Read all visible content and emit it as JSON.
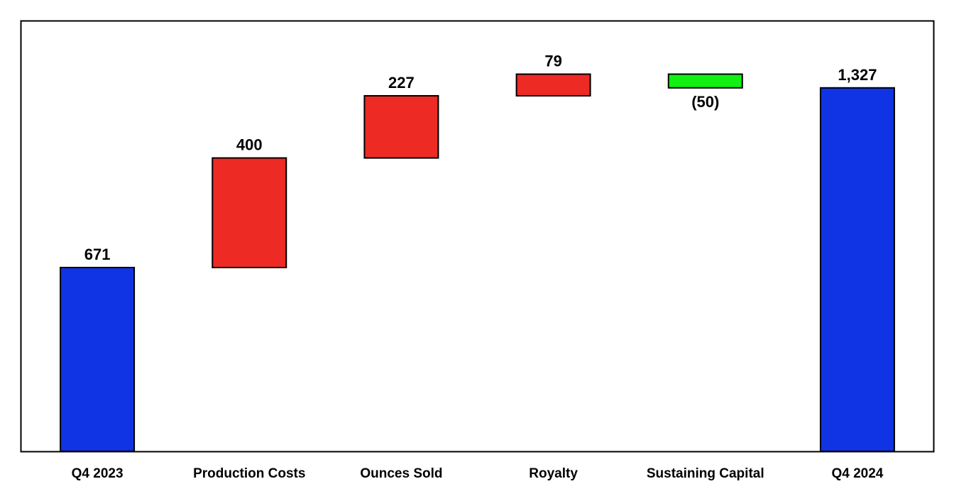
{
  "chart_data": {
    "type": "bar",
    "subtype": "waterfall",
    "title": "",
    "xlabel": "",
    "ylabel": "",
    "grid": false,
    "legend": "none",
    "ylim": [
      0,
      1570
    ],
    "categories": [
      "Q4 2023",
      "Production Costs",
      "Ounces Sold",
      "Royalty",
      "Sustaining Capital",
      "Q4 2024"
    ],
    "steps": [
      {
        "category": "Q4 2023",
        "kind": "total",
        "value": 671,
        "label": "671",
        "color": "#1034E3"
      },
      {
        "category": "Production Costs",
        "kind": "increase",
        "value": 400,
        "label": "400",
        "color": "#EE2A25"
      },
      {
        "category": "Ounces Sold",
        "kind": "increase",
        "value": 227,
        "label": "227",
        "color": "#EE2A25"
      },
      {
        "category": "Royalty",
        "kind": "increase",
        "value": 79,
        "label": "79",
        "color": "#EE2A25"
      },
      {
        "category": "Sustaining Capital",
        "kind": "decrease",
        "value": -50,
        "label": "(50)",
        "color": "#12F012"
      },
      {
        "category": "Q4 2024",
        "kind": "total",
        "value": 1327,
        "label": "1,327",
        "color": "#1034E3"
      }
    ]
  }
}
